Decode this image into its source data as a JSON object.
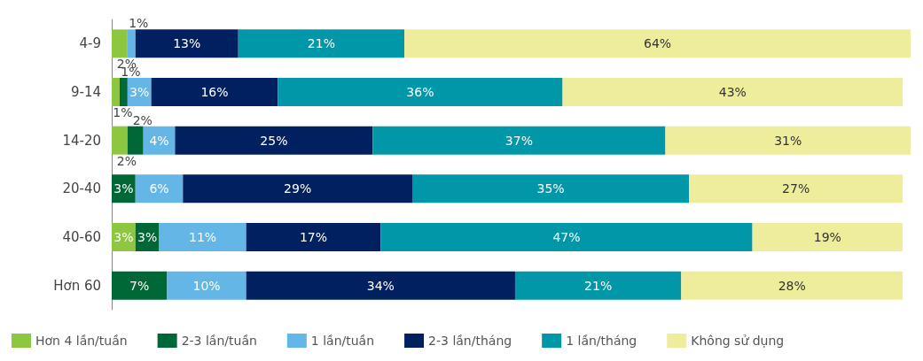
{
  "chart_data": {
    "type": "bar",
    "orientation": "horizontal",
    "stacked": true,
    "legend": "bottom",
    "categories": [
      "4-9",
      "9-14",
      "14-20",
      "20-40",
      "40-60",
      "Hơn 60"
    ],
    "series": [
      {
        "name": "Hơn 4 lần/tuần",
        "color": "#8dc63f",
        "values": [
          2,
          1,
          2,
          null,
          3,
          null
        ],
        "value_labels": [
          "2%",
          "1%",
          "2%",
          null,
          "3%",
          null
        ]
      },
      {
        "name": "2-3 lần/tuần",
        "color": "#006837",
        "values": [
          null,
          1,
          2,
          3,
          3,
          7
        ],
        "value_labels": [
          null,
          "1%",
          "2%",
          "3%",
          "3%",
          "7%"
        ]
      },
      {
        "name": "1 lần/tuần",
        "color": "#63b6e6",
        "values": [
          1,
          3,
          4,
          6,
          11,
          10
        ],
        "value_labels": [
          "1%",
          "3%",
          "4%",
          "6%",
          "11%",
          "10%"
        ]
      },
      {
        "name": "2-3 lần/tháng",
        "color": "#002060",
        "values": [
          13,
          16,
          25,
          29,
          17,
          34
        ],
        "value_labels": [
          "13%",
          "16%",
          "25%",
          "29%",
          "17%",
          "34%"
        ]
      },
      {
        "name": "1 lần/tháng",
        "color": "#0097a9",
        "values": [
          21,
          36,
          37,
          35,
          47,
          21
        ],
        "value_labels": [
          "21%",
          "36%",
          "37%",
          "35%",
          "47%",
          "21%"
        ]
      },
      {
        "name": "Không sử dụng",
        "color": "#eded9b",
        "values": [
          64,
          43,
          31,
          27,
          19,
          28
        ],
        "value_labels": [
          "64%",
          "43%",
          "31%",
          "27%",
          "19%",
          "28%"
        ]
      }
    ]
  }
}
